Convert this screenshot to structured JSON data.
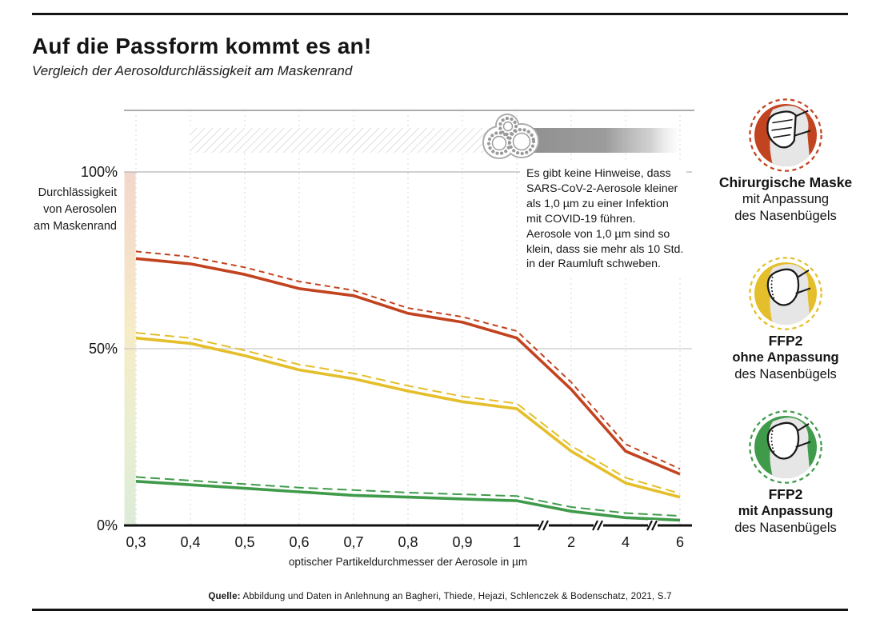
{
  "header": {
    "title": "Auf die Passform kommt es an!",
    "subtitle": "Vergleich der Aerosoldurchlässigkeit am Maskenrand"
  },
  "annotation": {
    "lines": [
      "Es gibt keine Hinweise, dass",
      "SARS-CoV-2-Aerosole kleiner",
      "als 1,0 µm zu einer Infektion",
      "mit COVID-19 führen.",
      "Aerosole von 1,0 µm sind so",
      "klein, dass sie mehr als 10 Std.",
      "in der Raumluft schweben."
    ]
  },
  "legend": {
    "items": [
      {
        "title": "Chirurgische Maske",
        "line2": "mit Anpassung",
        "line3": "des Nasenbügels",
        "color": "#c2431f",
        "line2_bold": false,
        "mask_type": "surgical"
      },
      {
        "title": "FFP2",
        "line2": "ohne Anpassung",
        "line3": "des Nasenbügels",
        "color": "#e4bf2b",
        "line2_bold": true,
        "mask_type": "ffp2"
      },
      {
        "title": "FFP2",
        "line2": "mit Anpassung",
        "line3": "des Nasenbügels",
        "color": "#3f9b4a",
        "line2_bold": true,
        "mask_type": "ffp2"
      }
    ]
  },
  "source": {
    "prefix": "Quelle:",
    "text": " Abbildung und Daten in Anlehnung an Bagheri, Thiede, Hejazi, Schlenczek & Bodenschatz, 2021, S.7"
  },
  "chart_data": {
    "type": "line",
    "x_tick_labels": [
      "0,3",
      "0,4",
      "0,5",
      "0,6",
      "0,7",
      "0,8",
      "0,9",
      "1",
      "2",
      "4",
      "6"
    ],
    "x_values_um": [
      0.3,
      0.4,
      0.5,
      0.6,
      0.7,
      0.8,
      0.9,
      1,
      2,
      4,
      6
    ],
    "xlabel": "optischer Partikeldurchmesser der Aerosole in µm",
    "ylabel": "Durchlässigkeit von Aerosolen am Maskenrand",
    "ylabel_lines": [
      "Durchlässigkeit",
      "von Aerosolen",
      "am Maskenrand"
    ],
    "yticks": [
      {
        "label": "100%",
        "value": 100
      },
      {
        "label": "50%",
        "value": 50
      },
      {
        "label": "0%",
        "value": 0
      }
    ],
    "ylim": [
      0,
      100
    ],
    "grid": {
      "vertical_dotted": true,
      "horizontal_values": [
        100,
        50
      ]
    },
    "x_axis_breaks_between": [
      [
        "1",
        "2"
      ],
      [
        "2",
        "4"
      ],
      [
        "4",
        "6"
      ]
    ],
    "series": [
      {
        "name": "Chirurgische Maske mit Anpassung des Nasenbügels",
        "variant": "dashed",
        "color": "#c2431f",
        "dash": "short",
        "values": [
          77.5,
          76,
          73,
          69,
          66.5,
          61.5,
          59,
          55,
          40.5,
          23,
          16
        ]
      },
      {
        "name": "Chirurgische Maske mit Anpassung des Nasenbügels",
        "variant": "solid",
        "color": "#c2431f",
        "dash": "none",
        "values": [
          75.5,
          74,
          71,
          67,
          65,
          60,
          57.5,
          53,
          38.5,
          21,
          14.5
        ]
      },
      {
        "name": "FFP2 ohne Anpassung des Nasenbügels",
        "variant": "dashed",
        "color": "#e4bf2b",
        "dash": "long",
        "values": [
          54.5,
          53,
          49.5,
          45.5,
          43,
          39.5,
          36.5,
          34.5,
          22.5,
          13.5,
          9
        ]
      },
      {
        "name": "FFP2 ohne Anpassung des Nasenbügels",
        "variant": "solid",
        "color": "#e4bf2b",
        "dash": "none",
        "values": [
          53,
          51.5,
          48,
          44,
          41.5,
          38,
          35,
          33,
          21,
          12,
          8
        ]
      },
      {
        "name": "FFP2 mit Anpassung des Nasenbügels",
        "variant": "dashed",
        "color": "#3f9b4a",
        "dash": "long",
        "values": [
          13.7,
          12.7,
          11.7,
          10.7,
          10,
          9.3,
          8.8,
          8.3,
          5.2,
          3.5,
          2.7
        ]
      },
      {
        "name": "FFP2 mit Anpassung des Nasenbügels",
        "variant": "solid",
        "color": "#3f9b4a",
        "dash": "none",
        "values": [
          12.5,
          11.5,
          10.5,
          9.5,
          8.5,
          8,
          7.5,
          7,
          4,
          2.2,
          1.5
        ]
      }
    ]
  }
}
